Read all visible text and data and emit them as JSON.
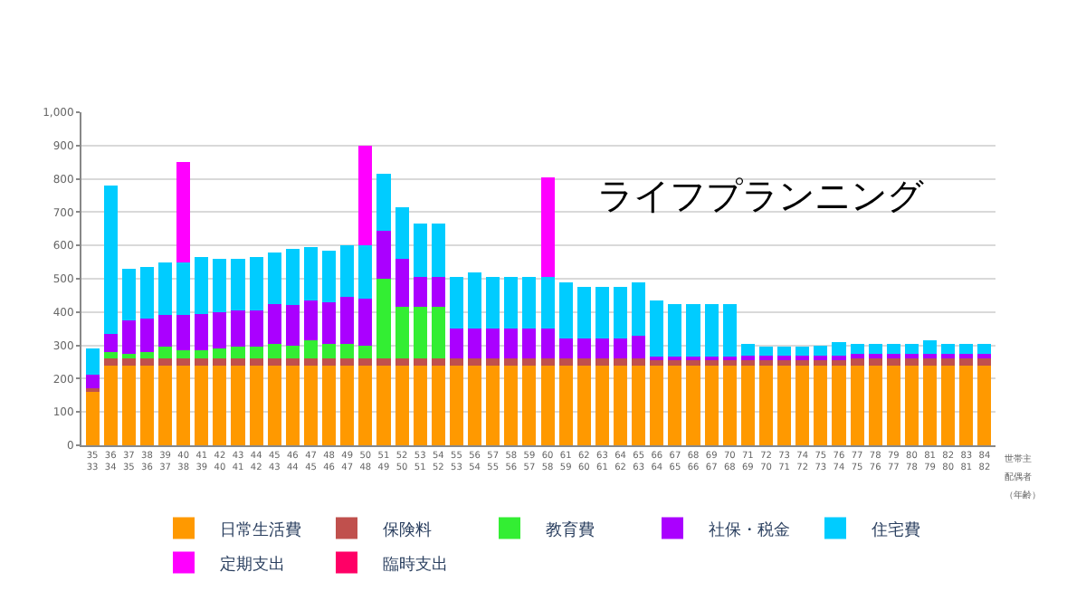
{
  "chart_data": {
    "type": "bar",
    "title": "ライフプランニング",
    "stacked": true,
    "grid": "y",
    "legend": "bottom",
    "annotations": [
      "世帯主",
      "配偶者",
      "（年齢）"
    ],
    "categories": [
      "35\n33",
      "36\n34",
      "37\n35",
      "38\n36",
      "39\n37",
      "40\n38",
      "41\n39",
      "42\n40",
      "43\n41",
      "44\n42",
      "45\n43",
      "46\n44",
      "47\n45",
      "48\n46",
      "49\n47",
      "50\n48",
      "51\n49",
      "52\n50",
      "53\n51",
      "54\n52",
      "55\n53",
      "56\n54",
      "57\n55",
      "58\n56",
      "59\n57",
      "60\n58",
      "61\n59",
      "62\n60",
      "63\n61",
      "64\n62",
      "65\n63",
      "66\n64",
      "67\n65",
      "68\n66",
      "69\n67",
      "70\n68",
      "71\n69",
      "72\n70",
      "73\n71",
      "74\n72",
      "75\n73",
      "76\n74",
      "77\n75",
      "78\n76",
      "79\n77",
      "80\n78",
      "81\n79",
      "82\n80",
      "83\n81",
      "84\n82"
    ],
    "ylim": [
      0,
      1000
    ],
    "yticks": [
      0,
      100,
      200,
      300,
      400,
      500,
      600,
      700,
      800,
      900,
      {
        "value": 1000,
        "label": "1,000"
      }
    ],
    "series": [
      {
        "name": "日常生活費",
        "color": "#ff9900",
        "values": [
          160,
          240,
          240,
          240,
          240,
          240,
          240,
          240,
          240,
          240,
          240,
          240,
          240,
          240,
          240,
          240,
          240,
          240,
          240,
          240,
          240,
          240,
          240,
          240,
          240,
          240,
          240,
          240,
          240,
          240,
          240,
          240,
          240,
          240,
          240,
          240,
          240,
          240,
          240,
          240,
          240,
          240,
          240,
          240,
          240,
          240,
          240,
          240,
          240,
          240
        ]
      },
      {
        "name": "保険料",
        "color": "#c0504d",
        "values": [
          12,
          20,
          20,
          20,
          20,
          20,
          20,
          20,
          20,
          20,
          20,
          20,
          20,
          20,
          20,
          20,
          20,
          20,
          20,
          20,
          20,
          20,
          20,
          20,
          20,
          20,
          20,
          20,
          20,
          20,
          20,
          20,
          20,
          20,
          20,
          20,
          20,
          20,
          20,
          20,
          20,
          20,
          20,
          20,
          20,
          20,
          20,
          20,
          20,
          20
        ]
      },
      {
        "name": "教育費",
        "color": "#33ee33",
        "values": [
          null,
          20,
          15,
          20,
          35,
          25,
          25,
          30,
          35,
          35,
          45,
          40,
          55,
          45,
          45,
          40,
          240,
          155,
          155,
          155,
          null,
          null,
          null,
          null,
          null,
          null,
          null,
          null,
          null,
          null,
          null,
          null,
          null,
          null,
          null,
          null,
          null,
          null,
          null,
          null,
          null,
          null,
          null,
          null,
          null,
          null,
          null,
          null,
          null,
          null
        ]
      },
      {
        "name": "社保・税金",
        "color": "#aa00ff",
        "values": [
          40,
          55,
          100,
          100,
          95,
          105,
          110,
          110,
          110,
          110,
          120,
          120,
          120,
          125,
          140,
          140,
          145,
          145,
          90,
          90,
          90,
          90,
          90,
          90,
          90,
          90,
          60,
          60,
          60,
          60,
          70,
          5,
          5,
          5,
          5,
          5,
          10,
          10,
          10,
          10,
          10,
          10,
          15,
          15,
          15,
          15,
          15,
          15,
          15,
          15
        ]
      },
      {
        "name": "住宅費",
        "color": "#00ccff",
        "values": [
          80,
          445,
          155,
          155,
          160,
          160,
          170,
          160,
          155,
          160,
          155,
          170,
          160,
          155,
          155,
          160,
          170,
          155,
          160,
          160,
          155,
          170,
          155,
          155,
          155,
          155,
          170,
          155,
          155,
          155,
          160,
          170,
          160,
          160,
          160,
          160,
          35,
          25,
          25,
          25,
          30,
          40,
          30,
          30,
          30,
          30,
          40,
          30,
          30,
          30
        ]
      },
      {
        "name": "定期支出",
        "color": "#ff00ff",
        "values": [
          null,
          null,
          null,
          null,
          null,
          300,
          null,
          null,
          null,
          null,
          null,
          null,
          null,
          null,
          null,
          300,
          null,
          null,
          null,
          null,
          null,
          null,
          null,
          null,
          null,
          300,
          null,
          null,
          null,
          null,
          null,
          null,
          null,
          null,
          null,
          null,
          null,
          null,
          null,
          null,
          null,
          null,
          null,
          null,
          null,
          null,
          null,
          null,
          null,
          null
        ]
      },
      {
        "name": "臨時支出",
        "color": "#ff0066",
        "values": [
          null,
          null,
          null,
          null,
          null,
          null,
          null,
          null,
          null,
          null,
          null,
          null,
          null,
          null,
          null,
          null,
          null,
          null,
          null,
          null,
          null,
          null,
          null,
          null,
          null,
          null,
          null,
          null,
          null,
          null,
          null,
          null,
          null,
          null,
          null,
          null,
          null,
          null,
          null,
          null,
          null,
          null,
          null,
          null,
          null,
          null,
          null,
          null,
          null,
          null
        ]
      }
    ]
  }
}
